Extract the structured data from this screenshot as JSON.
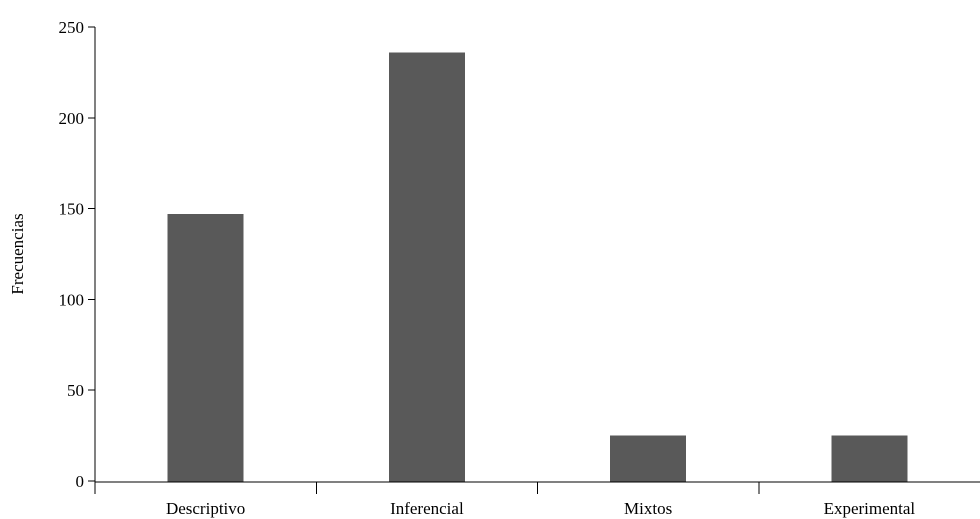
{
  "chart_data": {
    "type": "bar",
    "title": "",
    "xlabel": "",
    "ylabel": "Frecuencias",
    "categories": [
      "Descriptivo",
      "Inferencial",
      "Mixtos",
      "Experimental"
    ],
    "values": [
      147,
      236,
      25,
      25
    ],
    "ylim": [
      0,
      250
    ],
    "yticks": [
      0,
      50,
      100,
      150,
      200,
      250
    ],
    "grid": false,
    "legend": "none",
    "colors": {
      "bar": "#595959",
      "axis": "#000000"
    }
  }
}
